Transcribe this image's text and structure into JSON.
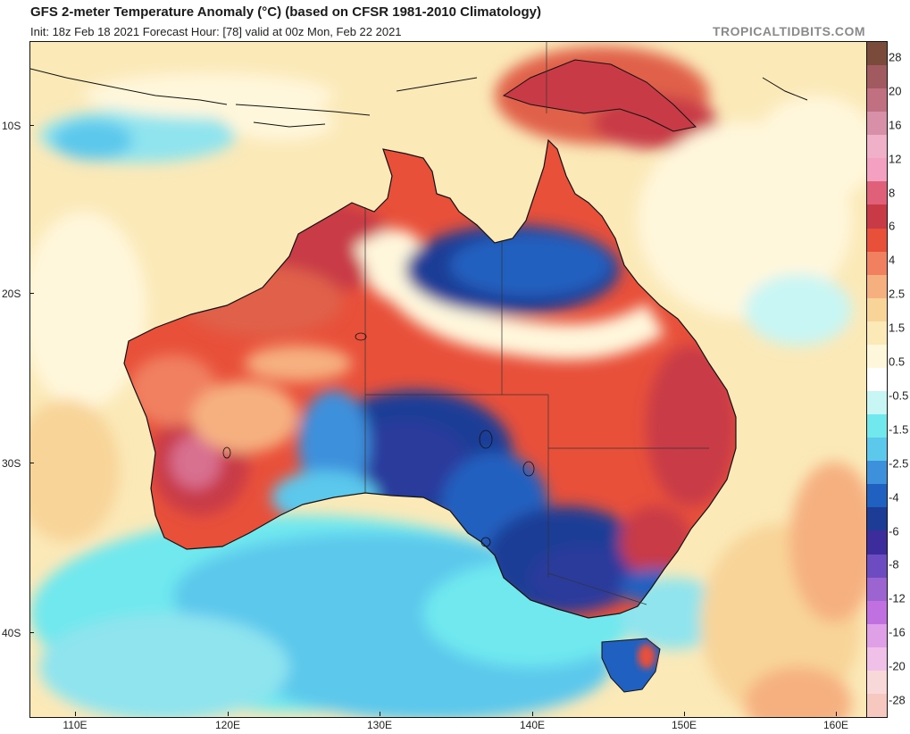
{
  "header": {
    "title": "GFS 2-meter Temperature Anomaly (°C) (based on CFSR 1981-2010 Climatology)",
    "subtitle": "Init: 18z Feb 18 2021   Forecast Hour: [78]   valid at 00z Mon, Feb 22 2021",
    "brand": "TROPICALTIDBITS.COM"
  },
  "map": {
    "lat_labels": [
      "10S",
      "20S",
      "30S",
      "40S"
    ],
    "lon_labels": [
      "110E",
      "120E",
      "130E",
      "140E",
      "150E",
      "160E"
    ],
    "ocean_color": "#fbe9b8",
    "land_outline_color": "#111111"
  },
  "colorbar": {
    "labels": [
      "28",
      "20",
      "16",
      "12",
      "8",
      "6",
      "4",
      "2.5",
      "1.5",
      "0.5",
      "-0.5",
      "-1.5",
      "-2.5",
      "-4",
      "-6",
      "-8",
      "-12",
      "-16",
      "-20",
      "-28"
    ],
    "colors": [
      "#7a4a3a",
      "#a05a60",
      "#c07080",
      "#d890a8",
      "#f0b0c8",
      "#f4a0c0",
      "#e0607a",
      "#c83a46",
      "#e8503a",
      "#f08060",
      "#f6b080",
      "#f8d498",
      "#fbe9b8",
      "#fff7dc",
      "#ffffff",
      "#c8f6f4",
      "#70e8ee",
      "#5cc8ec",
      "#3c90dc",
      "#2060c0",
      "#1c3c96",
      "#3c2c9c",
      "#6c4cc0",
      "#9c64d0",
      "#c070e0",
      "#e0a0e8",
      "#f0c0e8",
      "#f8d8d8",
      "#f6c8c0"
    ]
  }
}
